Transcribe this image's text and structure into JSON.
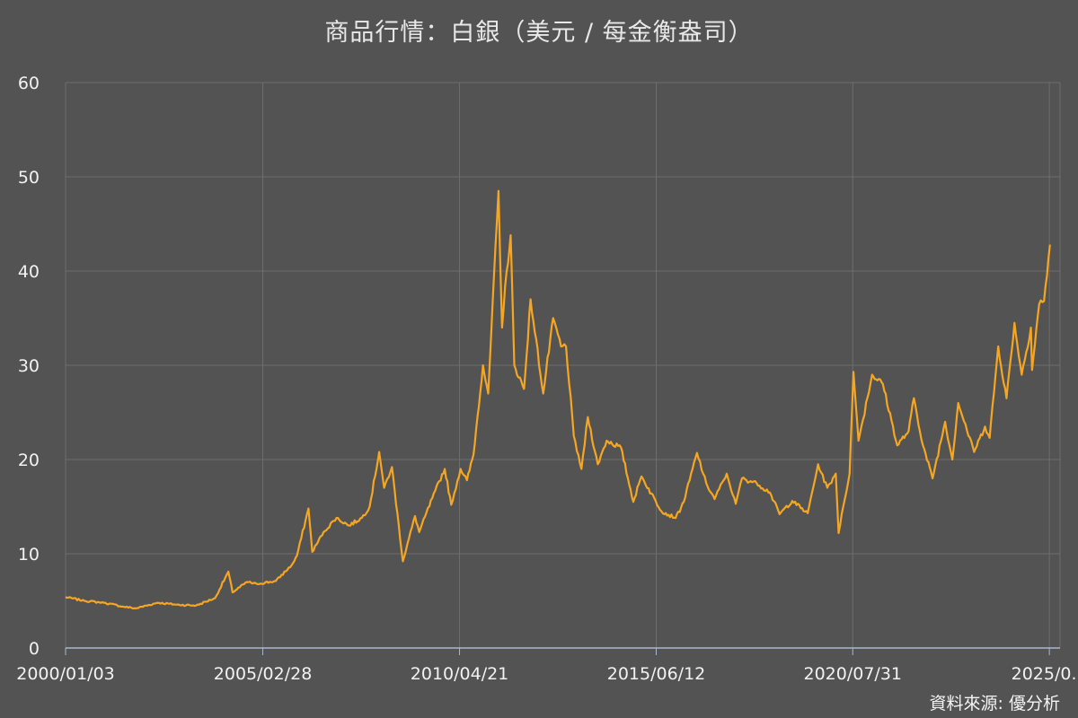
{
  "chart_data": {
    "type": "line",
    "title": "商品行情：白銀（美元 / 每金衡盎司）",
    "source": "資料來源: 優分析",
    "xlabel": "",
    "ylabel": "",
    "ylim": [
      0,
      60
    ],
    "yticks": [
      0,
      10,
      20,
      30,
      40,
      50,
      60
    ],
    "xlim": [
      "2000/01/03",
      "2025/12/31"
    ],
    "xtick_labels": [
      "2000/01/03",
      "2005/02/28",
      "2010/04/21",
      "2015/06/12",
      "2020/07/31",
      "2025/0..."
    ],
    "xtick_dates": [
      "2000-01-03",
      "2005-02-28",
      "2010-04-21",
      "2015-06-12",
      "2020-07-31",
      "2025-09-20"
    ],
    "grid": true,
    "line_color": "#f5a623",
    "series": [
      {
        "points": [
          [
            "2000-01-03",
            5.4
          ],
          [
            "2000-07-01",
            5.0
          ],
          [
            "2001-01-01",
            4.8
          ],
          [
            "2001-07-01",
            4.4
          ],
          [
            "2001-11-01",
            4.2
          ],
          [
            "2002-06-01",
            4.8
          ],
          [
            "2002-12-01",
            4.6
          ],
          [
            "2003-06-01",
            4.5
          ],
          [
            "2003-12-01",
            5.3
          ],
          [
            "2004-04-05",
            8.1
          ],
          [
            "2004-05-15",
            5.9
          ],
          [
            "2004-10-01",
            7.0
          ],
          [
            "2005-01-01",
            6.8
          ],
          [
            "2005-07-01",
            7.1
          ],
          [
            "2005-12-01",
            8.8
          ],
          [
            "2006-01-20",
            9.8
          ],
          [
            "2006-05-10",
            14.8
          ],
          [
            "2006-06-15",
            10.2
          ],
          [
            "2006-10-01",
            12.3
          ],
          [
            "2007-02-01",
            13.8
          ],
          [
            "2007-06-01",
            13.0
          ],
          [
            "2007-10-01",
            13.8
          ],
          [
            "2007-12-15",
            15.0
          ],
          [
            "2008-03-15",
            20.8
          ],
          [
            "2008-05-01",
            17.0
          ],
          [
            "2008-07-15",
            19.2
          ],
          [
            "2008-10-27",
            9.2
          ],
          [
            "2009-02-20",
            14.0
          ],
          [
            "2009-04-01",
            12.3
          ],
          [
            "2009-09-01",
            16.7
          ],
          [
            "2009-12-01",
            19.0
          ],
          [
            "2010-02-01",
            15.2
          ],
          [
            "2010-05-01",
            19.0
          ],
          [
            "2010-07-01",
            17.8
          ],
          [
            "2010-09-01",
            20.5
          ],
          [
            "2010-12-01",
            30.0
          ],
          [
            "2011-01-20",
            27.0
          ],
          [
            "2011-04-28",
            48.5
          ],
          [
            "2011-06-01",
            34.0
          ],
          [
            "2011-07-15",
            40.0
          ],
          [
            "2011-08-22",
            43.8
          ],
          [
            "2011-09-26",
            30.0
          ],
          [
            "2011-12-28",
            27.5
          ],
          [
            "2012-02-28",
            37.0
          ],
          [
            "2012-06-28",
            27.0
          ],
          [
            "2012-10-01",
            35.0
          ],
          [
            "2012-12-15",
            32.0
          ],
          [
            "2013-02-01",
            32.0
          ],
          [
            "2013-04-16",
            22.5
          ],
          [
            "2013-06-28",
            19.0
          ],
          [
            "2013-08-28",
            24.5
          ],
          [
            "2013-12-01",
            19.5
          ],
          [
            "2014-02-24",
            22.0
          ],
          [
            "2014-07-10",
            21.3
          ],
          [
            "2014-11-05",
            15.5
          ],
          [
            "2015-01-22",
            18.2
          ],
          [
            "2015-08-01",
            14.5
          ],
          [
            "2015-12-15",
            13.8
          ],
          [
            "2016-03-01",
            15.5
          ],
          [
            "2016-07-05",
            20.7
          ],
          [
            "2016-10-01",
            17.5
          ],
          [
            "2016-12-20",
            15.8
          ],
          [
            "2017-04-15",
            18.5
          ],
          [
            "2017-07-10",
            15.3
          ],
          [
            "2017-09-08",
            18.0
          ],
          [
            "2018-01-25",
            17.5
          ],
          [
            "2018-06-01",
            16.5
          ],
          [
            "2018-09-01",
            14.2
          ],
          [
            "2019-01-01",
            15.6
          ],
          [
            "2019-05-28",
            14.3
          ],
          [
            "2019-09-04",
            19.5
          ],
          [
            "2019-12-01",
            17.0
          ],
          [
            "2020-02-20",
            18.5
          ],
          [
            "2020-03-18",
            12.2
          ],
          [
            "2020-05-01",
            15.0
          ],
          [
            "2020-07-01",
            18.5
          ],
          [
            "2020-08-07",
            29.3
          ],
          [
            "2020-09-24",
            22.0
          ],
          [
            "2021-02-01",
            29.0
          ],
          [
            "2021-05-15",
            28.0
          ],
          [
            "2021-09-29",
            21.5
          ],
          [
            "2022-01-15",
            23.0
          ],
          [
            "2022-03-07",
            26.5
          ],
          [
            "2022-06-01",
            21.5
          ],
          [
            "2022-09-01",
            18.0
          ],
          [
            "2022-12-30",
            24.0
          ],
          [
            "2023-03-09",
            20.0
          ],
          [
            "2023-05-04",
            26.0
          ],
          [
            "2023-10-03",
            20.8
          ],
          [
            "2024-01-15",
            23.5
          ],
          [
            "2024-02-28",
            22.3
          ],
          [
            "2024-05-20",
            32.0
          ],
          [
            "2024-08-07",
            26.5
          ],
          [
            "2024-10-22",
            34.5
          ],
          [
            "2024-12-30",
            29.0
          ],
          [
            "2025-03-28",
            34.0
          ],
          [
            "2025-04-08",
            29.5
          ],
          [
            "2025-06-15",
            36.5
          ],
          [
            "2025-07-31",
            36.8
          ],
          [
            "2025-09-26",
            42.8
          ]
        ]
      }
    ]
  }
}
